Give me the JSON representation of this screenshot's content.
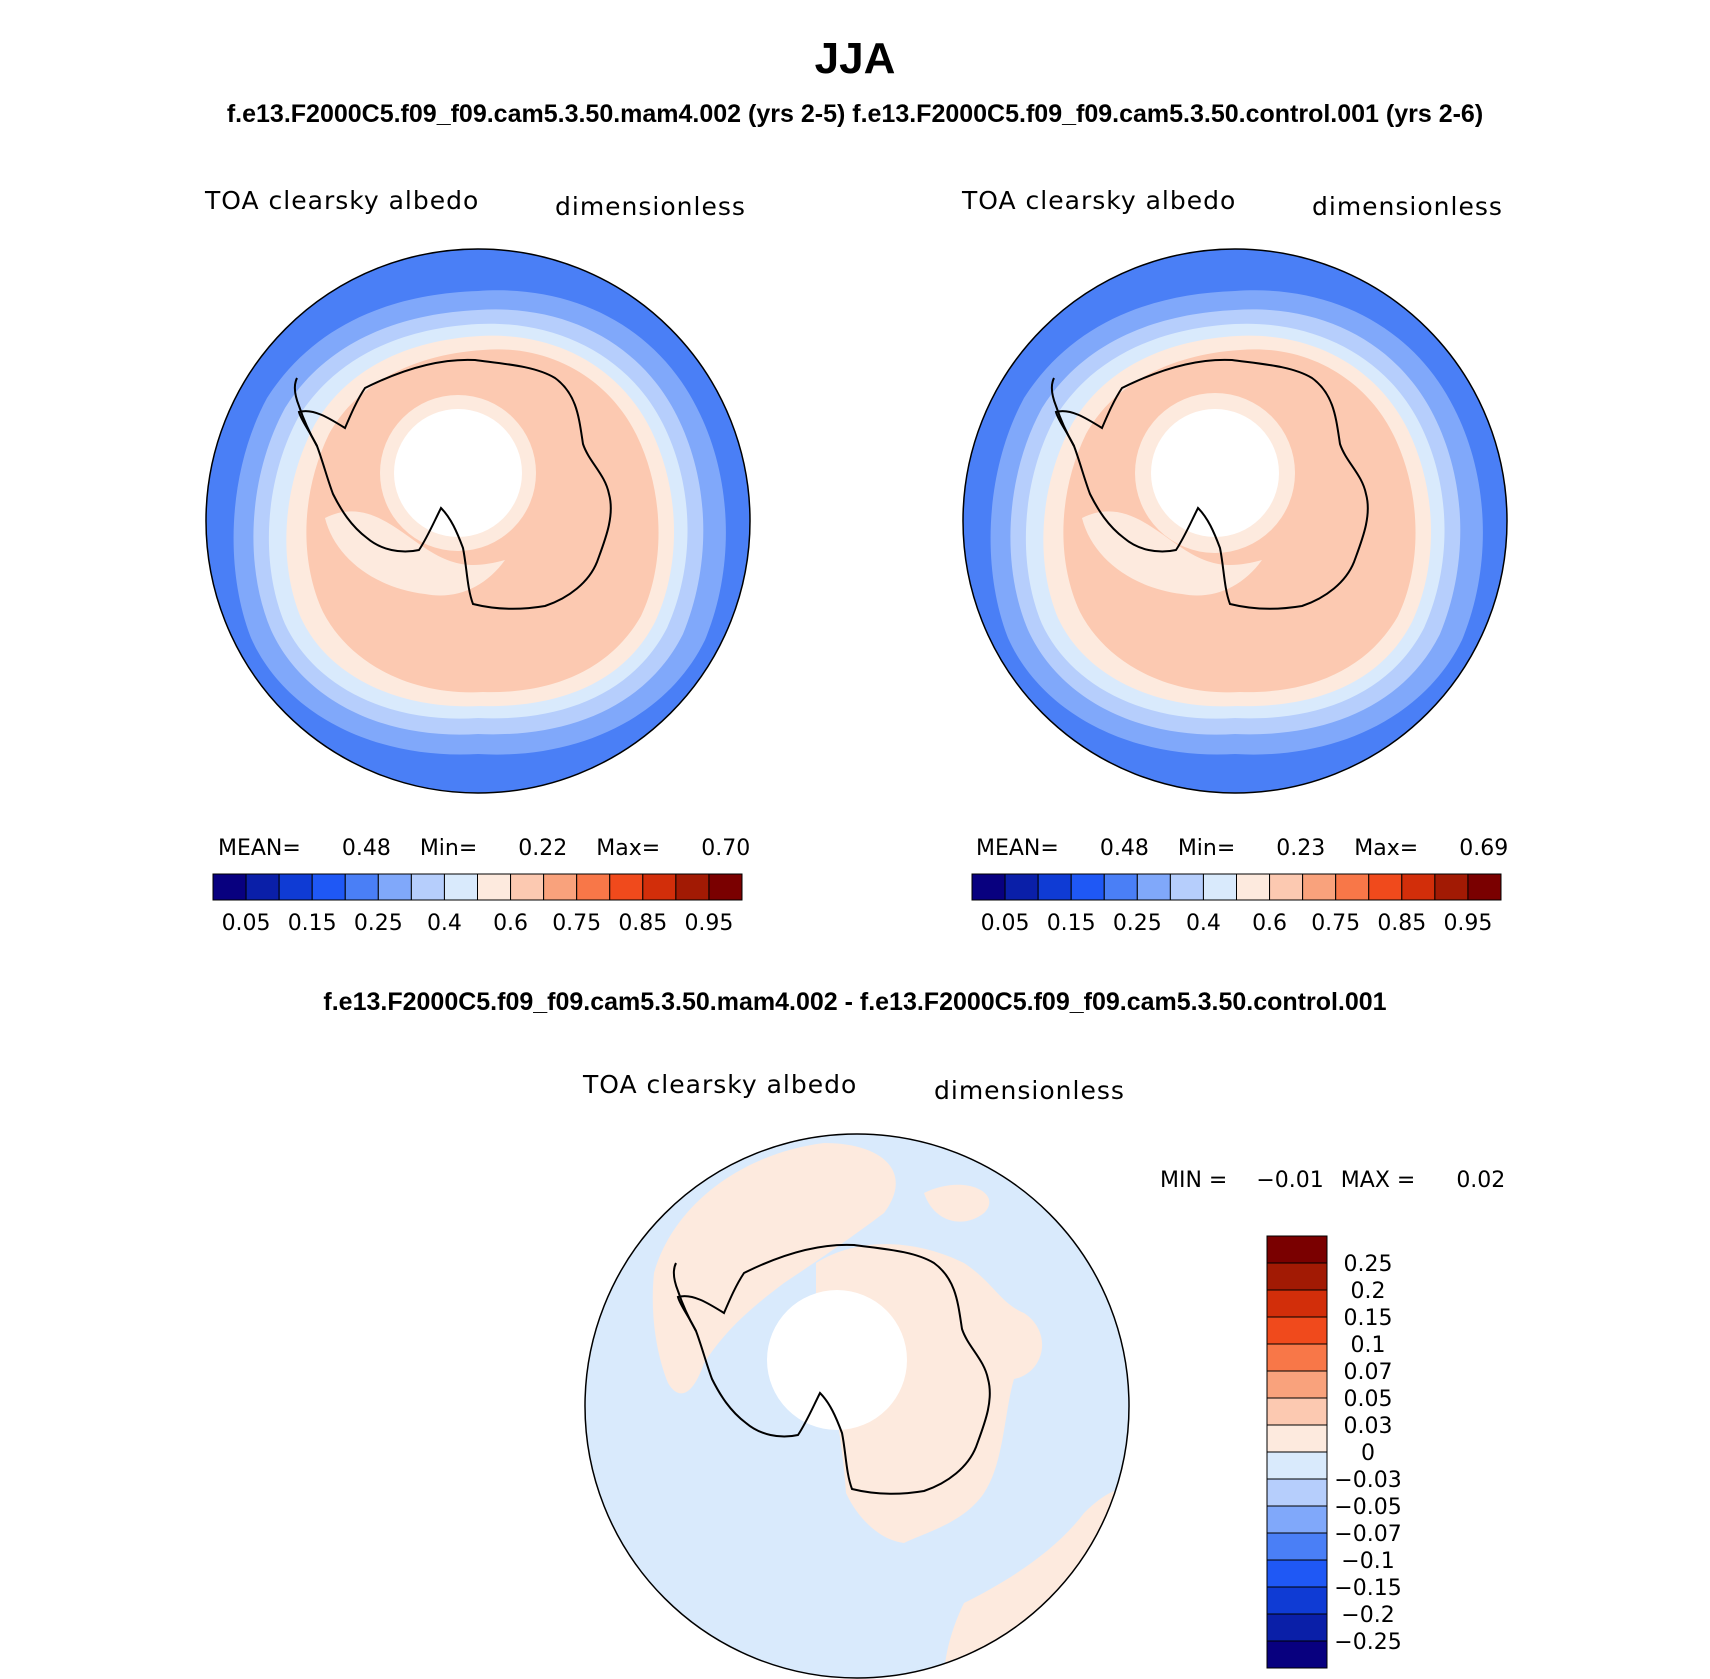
{
  "figure": {
    "title": "JJA",
    "subtitle_top": "f.e13.F2000C5.f09_f09.cam5.3.50.mam4.002 (yrs 2-5) f.e13.F2000C5.f09_f09.cam5.3.50.control.001 (yrs 2-6)",
    "subtitle_diff": "f.e13.F2000C5.f09_f09.cam5.3.50.mam4.002 - f.e13.F2000C5.f09_f09.cam5.3.50.control.001"
  },
  "panels": [
    {
      "variable": "TOA clearsky albedo",
      "units": "dimensionless",
      "mean_label": "MEAN=",
      "mean": "0.48",
      "min_label": "Min=",
      "min": "0.22",
      "max_label": "Max=",
      "max": "0.70"
    },
    {
      "variable": "TOA clearsky albedo",
      "units": "dimensionless",
      "mean_label": "MEAN=",
      "mean": "0.48",
      "min_label": "Min=",
      "min": "0.23",
      "max_label": "Max=",
      "max": "0.69"
    },
    {
      "variable": "TOA clearsky albedo",
      "units": "dimensionless",
      "min_label": "MIN =",
      "min": "−0.01",
      "max_label": "MAX =",
      "max": "0.02"
    }
  ],
  "colorbar_abs": {
    "colors": [
      "#08007f",
      "#0a1fa8",
      "#0f3bd4",
      "#1f58f5",
      "#4a7ff6",
      "#80a8fa",
      "#b6cefc",
      "#d9eafc",
      "#fdeade",
      "#fcc9b1",
      "#f9a27c",
      "#f87748",
      "#f04a1c",
      "#d22e0a",
      "#a21a04",
      "#7a0000"
    ],
    "labels": [
      "0.05",
      "0.15",
      "0.25",
      "0.4",
      "0.6",
      "0.75",
      "0.85",
      "0.95"
    ]
  },
  "colorbar_diff": {
    "colors": [
      "#7a0000",
      "#a21a04",
      "#d22e0a",
      "#f04a1c",
      "#f87748",
      "#f9a27c",
      "#fcc9b1",
      "#fdeade",
      "#d9eafc",
      "#b6cefc",
      "#80a8fa",
      "#4a7ff6",
      "#1f58f5",
      "#0f3bd4",
      "#0a1fa8",
      "#08007f"
    ],
    "labels": [
      "0.25",
      "0.2",
      "0.15",
      "0.1",
      "0.07",
      "0.05",
      "0.03",
      "0",
      "−0.03",
      "−0.05",
      "−0.07",
      "−0.1",
      "−0.15",
      "−0.2",
      "−0.25"
    ]
  }
}
